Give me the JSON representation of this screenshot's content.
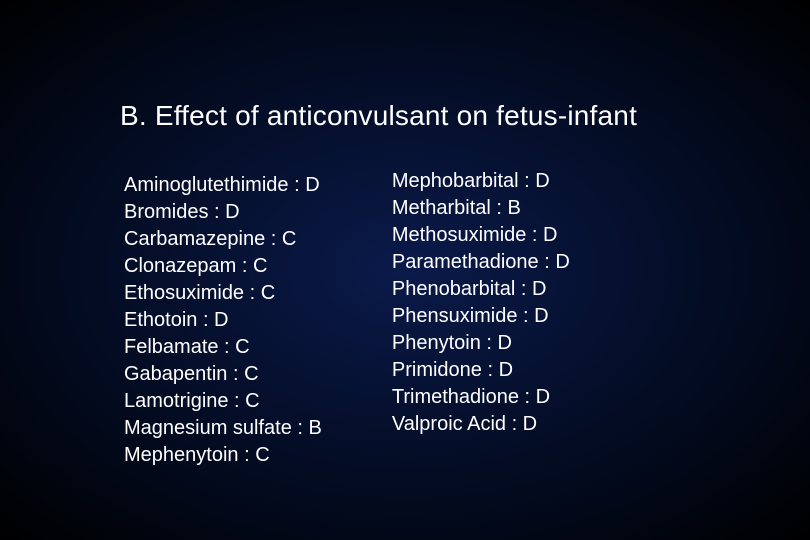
{
  "title": "B.  Effect of anticonvulsant on fetus-infant",
  "left_column": [
    "Aminoglutethimide : D",
    "Bromides : D",
    "Carbamazepine : C",
    "Clonazepam : C",
    "Ethosuximide : C",
    "Ethotoin : D",
    "Felbamate : C",
    "Gabapentin : C",
    "Lamotrigine : C",
    "Magnesium sulfate : B",
    "Mephenytoin : C"
  ],
  "right_column": [
    "Mephobarbital : D",
    "Metharbital : B",
    "Methosuximide : D",
    "Paramethadione : D",
    "Phenobarbital : D",
    "Phensuximide : D",
    "Phenytoin : D",
    "Primidone : D",
    "Trimethadione : D",
    "Valproic Acid : D"
  ],
  "styling": {
    "background_gradient_center": "#0a1a4a",
    "background_gradient_mid": "#020818",
    "background_gradient_edge": "#000000",
    "text_color": "#ffffff",
    "title_fontsize": 28,
    "item_fontsize": 20,
    "font_family": "Arial",
    "line_height": 1.35,
    "slide_width": 810,
    "slide_height": 540
  }
}
